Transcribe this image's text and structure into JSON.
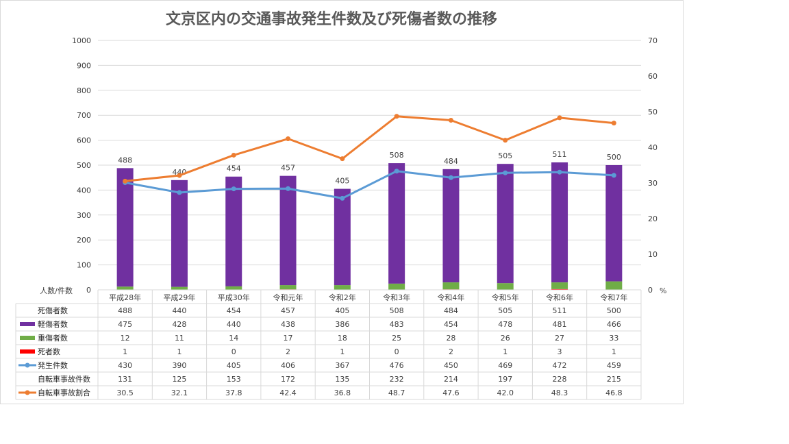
{
  "chart_data": {
    "type": "bar",
    "title": "文京区内の交通事故発生件数及び死傷者数の推移",
    "categories": [
      "平成28年",
      "平成29年",
      "平成30年",
      "令和元年",
      "令和2年",
      "令和3年",
      "令和4年",
      "令和5年",
      "令和6年",
      "令和7年"
    ],
    "left_axis": {
      "label": "人数/件数",
      "ylim": [
        0,
        1000
      ],
      "ticks": [
        "0",
        "100",
        "200",
        "300",
        "400",
        "500",
        "600",
        "700",
        "800",
        "900",
        "1000"
      ]
    },
    "right_axis": {
      "label": "%",
      "ylim": [
        0,
        70
      ],
      "ticks": [
        "0",
        "10",
        "20",
        "30",
        "40",
        "50",
        "60",
        "70"
      ]
    },
    "total_label": "死傷者数",
    "totals": [
      488,
      440,
      454,
      457,
      405,
      508,
      484,
      505,
      511,
      500
    ],
    "series": [
      {
        "name": "軽傷者数",
        "kind": "bar",
        "axis": "left",
        "color": "#7030a0",
        "values": [
          475,
          428,
          440,
          438,
          386,
          483,
          454,
          478,
          481,
          466
        ]
      },
      {
        "name": "重傷者数",
        "kind": "bar",
        "axis": "left",
        "color": "#70ad47",
        "values": [
          12,
          11,
          14,
          17,
          18,
          25,
          28,
          26,
          27,
          33
        ]
      },
      {
        "name": "死者数",
        "kind": "bar",
        "axis": "left",
        "color": "#ff0000",
        "values": [
          1,
          1,
          0,
          2,
          1,
          0,
          2,
          1,
          3,
          1
        ]
      },
      {
        "name": "発生件数",
        "kind": "line",
        "axis": "left",
        "color": "#5b9bd5",
        "values": [
          430,
          390,
          405,
          406,
          367,
          476,
          450,
          469,
          472,
          459
        ]
      },
      {
        "name": "自転車事故件数",
        "kind": "none",
        "axis": "none",
        "values": [
          131,
          125,
          153,
          172,
          135,
          232,
          214,
          197,
          228,
          215
        ]
      },
      {
        "name": "自転車事故割合",
        "kind": "line",
        "axis": "right",
        "color": "#ed7d31",
        "values": [
          "30.5",
          "32.1",
          "37.8",
          "42.4",
          "36.8",
          "48.7",
          "47.6",
          "42.0",
          "48.3",
          "46.8"
        ]
      }
    ],
    "grid": true
  }
}
